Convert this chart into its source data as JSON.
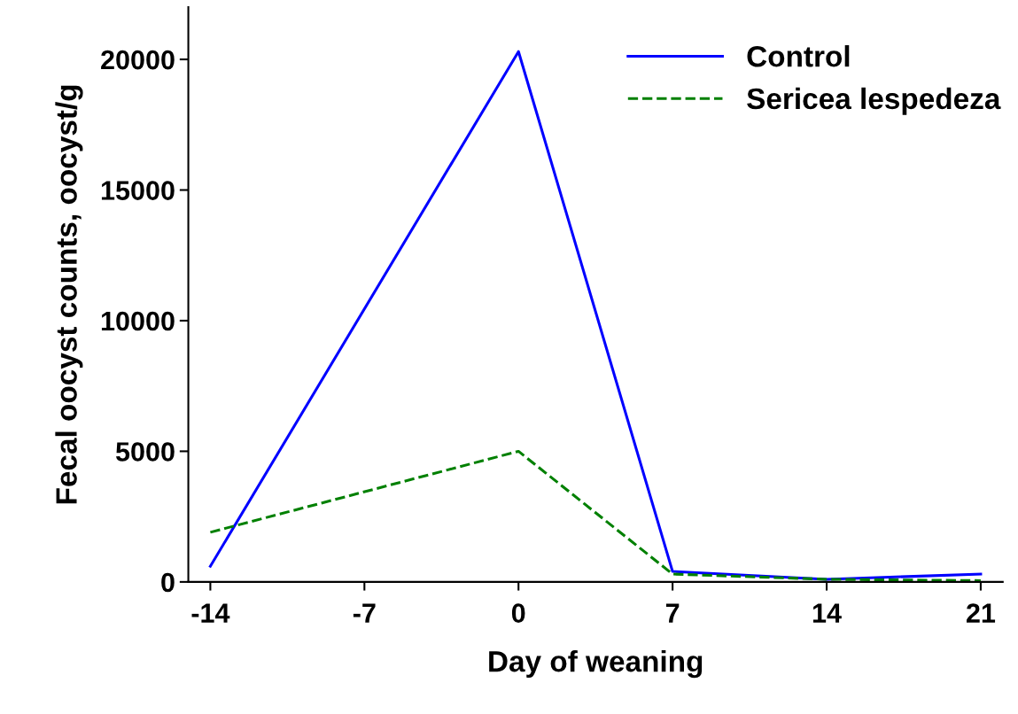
{
  "chart_data": {
    "type": "line",
    "xlabel": "Day of weaning",
    "ylabel": "Fecal oocyst counts, oocyst/g",
    "x": [
      -14,
      0,
      7,
      14,
      21
    ],
    "series": [
      {
        "name": "Control",
        "color": "#0000ff",
        "values": [
          600,
          20300,
          400,
          100,
          300
        ],
        "line_style": "solid"
      },
      {
        "name": "Sericea lespedeza",
        "color": "#008000",
        "values": [
          1900,
          5000,
          300,
          100,
          50
        ],
        "line_style": "dashed"
      }
    ],
    "xlim": [
      -15,
      22
    ],
    "xticks": [
      -14,
      -7,
      0,
      7,
      14,
      21
    ],
    "ylim": [
      0,
      22000
    ],
    "yticks": [
      0,
      5000,
      10000,
      15000,
      20000
    ],
    "grid": false,
    "legend": "top right",
    "marker": "none"
  }
}
